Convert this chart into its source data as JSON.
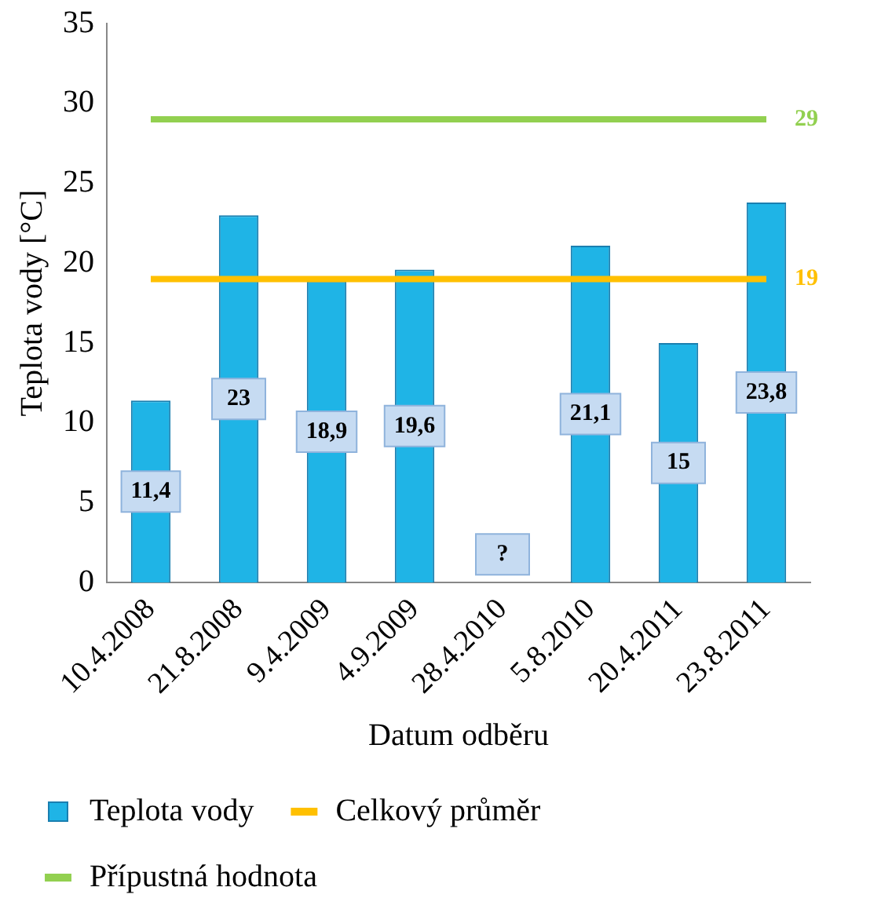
{
  "chart_data": {
    "type": "bar",
    "xlabel": "Datum odběru",
    "ylabel": "Teplota vody [°C]",
    "categories": [
      "10.4.2008",
      "21.8.2008",
      "9.4.2009",
      "4.9.2009",
      "28.4.2010",
      "5.8.2010",
      "20.4.2011",
      "23.8.2011"
    ],
    "series": [
      {
        "name": "Teplota vody",
        "color": "#1fb4e6",
        "values": [
          11.4,
          23,
          18.9,
          19.6,
          null,
          21.1,
          15,
          23.8
        ],
        "value_labels": [
          "11,4",
          "23",
          "18,9",
          "19,6",
          "?",
          "21,1",
          "15",
          "23,8"
        ]
      },
      {
        "name": "Celkový průměr",
        "type": "line",
        "color": "#ffc000",
        "values": [
          19,
          19,
          19,
          19,
          19,
          19,
          19,
          19
        ],
        "value_labels": [
          null,
          null,
          null,
          null,
          null,
          null,
          null,
          "19"
        ]
      },
      {
        "name": "Přípustná hodnota",
        "type": "line",
        "color": "#92d050",
        "values": [
          29,
          29,
          29,
          29,
          29,
          29,
          29,
          29
        ],
        "value_labels": [
          null,
          null,
          null,
          null,
          null,
          null,
          null,
          "29"
        ]
      }
    ],
    "ylim": [
      0,
      35
    ],
    "yticks": [
      0,
      5,
      10,
      15,
      20,
      25,
      30,
      35
    ],
    "grid": false,
    "legend": "bottom",
    "marker": "none",
    "line_style": "solid"
  }
}
